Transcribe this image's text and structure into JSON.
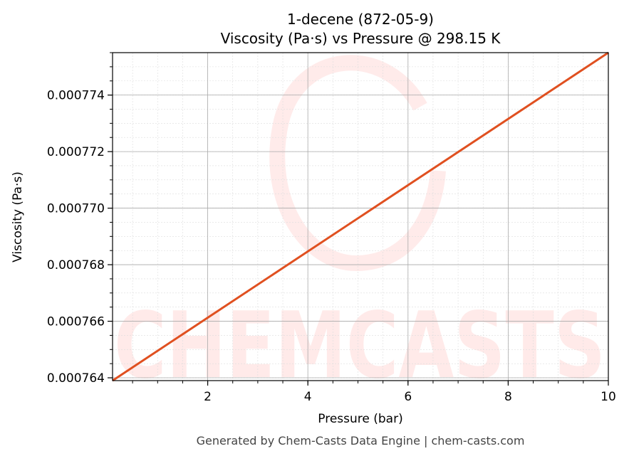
{
  "chart_data": {
    "type": "line",
    "title": "1-decene (872-05-9)",
    "subtitle": "Viscosity (Pa·s) vs Pressure @ 298.15 K",
    "xlabel": "Pressure (bar)",
    "ylabel": "Viscosity (Pa·s)",
    "xlim": [
      0.1,
      10
    ],
    "ylim": [
      0.0007639,
      0.0007755
    ],
    "xticks": [
      2,
      4,
      6,
      8,
      10
    ],
    "xtick_labels": [
      "2",
      "4",
      "6",
      "8",
      "10"
    ],
    "yticks": [
      0.000764,
      0.000766,
      0.000768,
      0.00077,
      0.000772,
      0.000774
    ],
    "ytick_labels": [
      "0.000764",
      "0.000766",
      "0.000768",
      "0.000770",
      "0.000772",
      "0.000774"
    ],
    "grid": true,
    "series": [
      {
        "x": [
          0.1,
          10
        ],
        "y": [
          0.0007639,
          0.0007755
        ],
        "color": "#e05020"
      }
    ],
    "watermark": "CHEMCASTS"
  },
  "footer": "Generated by Chem-Casts Data Engine | chem-casts.com"
}
